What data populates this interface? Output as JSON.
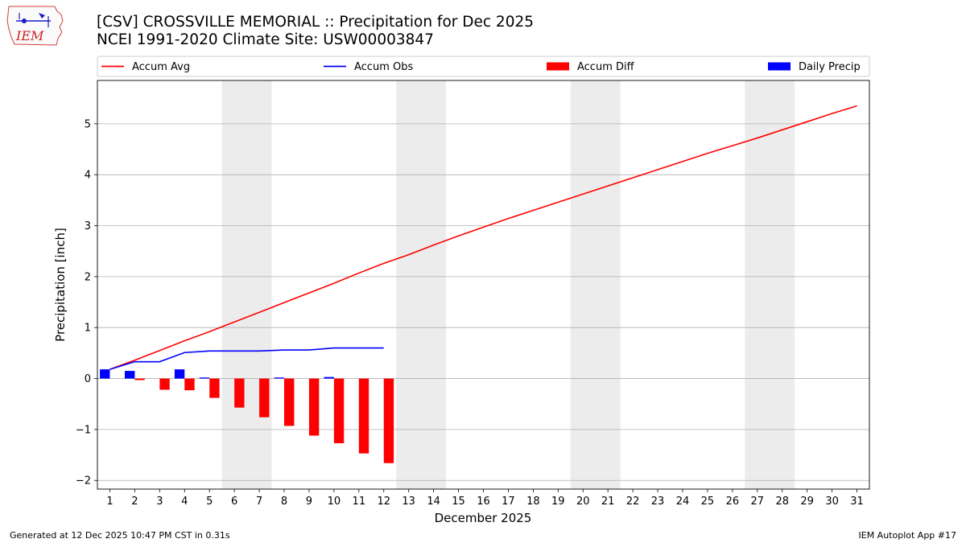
{
  "header": {
    "logo_text": "IEM",
    "title_line1": "[CSV] CROSSVILLE MEMORIAL :: Precipitation for Dec 2025",
    "title_line2": "NCEI 1991-2020 Climate Site: USW00003847"
  },
  "footer": {
    "generated": "Generated at 12 Dec 2025 10:47 PM CST in 0.31s",
    "app": "IEM Autoplot App #17"
  },
  "colors": {
    "accum_avg": "#ff0000",
    "accum_obs": "#0000ff",
    "accum_diff": "#ff0000",
    "daily_precip": "#0000ff",
    "weekend_shade": "#ececec",
    "grid": "#b0b0b0"
  },
  "chart_data": {
    "type": "bar",
    "title": "[CSV] CROSSVILLE MEMORIAL :: Precipitation for Dec 2025",
    "subtitle": "NCEI 1991-2020 Climate Site: USW00003847",
    "xlabel": "December 2025",
    "ylabel": "Precipitation [inch]",
    "xlim": [
      0.5,
      31.5
    ],
    "ylim": [
      -2.17,
      5.85
    ],
    "x_ticks": [
      1,
      2,
      3,
      4,
      5,
      6,
      7,
      8,
      9,
      10,
      11,
      12,
      13,
      14,
      15,
      16,
      17,
      18,
      19,
      20,
      21,
      22,
      23,
      24,
      25,
      26,
      27,
      28,
      29,
      30,
      31
    ],
    "y_ticks": [
      -2,
      -1,
      0,
      1,
      2,
      3,
      4,
      5
    ],
    "y_tick_labels": [
      "−2",
      "−1",
      "0",
      "1",
      "2",
      "3",
      "4",
      "5"
    ],
    "grid": "horizontal",
    "legend_position": "top",
    "weekend_shading": [
      [
        6,
        7
      ],
      [
        13,
        14
      ],
      [
        20,
        21
      ],
      [
        27,
        28
      ]
    ],
    "series": [
      {
        "name": "Accum Avg",
        "type": "line",
        "color": "#ff0000",
        "x": [
          1,
          2,
          3,
          4,
          5,
          6,
          7,
          8,
          9,
          10,
          11,
          12,
          13,
          14,
          15,
          16,
          17,
          18,
          19,
          20,
          21,
          22,
          23,
          24,
          25,
          26,
          27,
          28,
          29,
          30,
          31
        ],
        "values": [
          0.18,
          0.36,
          0.55,
          0.74,
          0.92,
          1.11,
          1.3,
          1.49,
          1.68,
          1.87,
          2.07,
          2.26,
          2.43,
          2.62,
          2.8,
          2.97,
          3.14,
          3.3,
          3.46,
          3.62,
          3.78,
          3.94,
          4.1,
          4.26,
          4.42,
          4.57,
          4.72,
          4.88,
          5.04,
          5.2,
          5.35
        ]
      },
      {
        "name": "Accum Obs",
        "type": "line",
        "color": "#0000ff",
        "x": [
          1,
          2,
          3,
          4,
          5,
          6,
          7,
          8,
          9,
          10,
          11,
          12
        ],
        "values": [
          0.18,
          0.33,
          0.33,
          0.51,
          0.54,
          0.54,
          0.54,
          0.56,
          0.56,
          0.6,
          0.6,
          0.6
        ]
      },
      {
        "name": "Accum Diff",
        "type": "bar",
        "color": "#ff0000",
        "x": [
          1,
          2,
          3,
          4,
          5,
          6,
          7,
          8,
          9,
          10,
          11,
          12
        ],
        "values": [
          0.0,
          -0.03,
          -0.22,
          -0.23,
          -0.38,
          -0.57,
          -0.76,
          -0.93,
          -1.12,
          -1.27,
          -1.47,
          -1.66
        ]
      },
      {
        "name": "Daily Precip",
        "type": "bar",
        "color": "#0000ff",
        "x": [
          1,
          2,
          3,
          4,
          5,
          6,
          7,
          8,
          9,
          10,
          11,
          12
        ],
        "values": [
          0.18,
          0.15,
          0.0,
          0.18,
          0.02,
          0.0,
          0.0,
          0.02,
          0.0,
          0.03,
          0.0,
          0.0
        ]
      }
    ]
  }
}
